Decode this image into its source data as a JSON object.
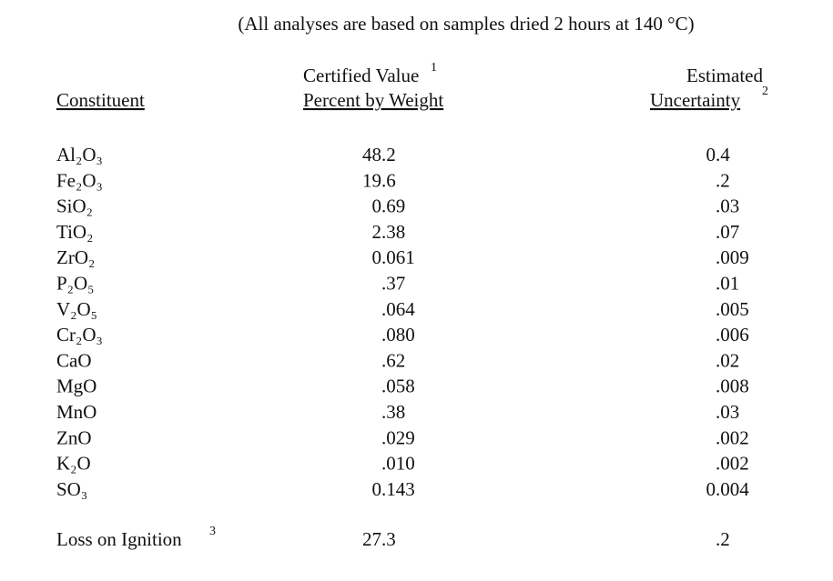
{
  "title": "(All analyses are based on samples dried 2 hours at 140 °C)",
  "header": {
    "constituent": "Constituent",
    "certified_line1": "Certified Value",
    "certified_note": "1",
    "certified_line2": "Percent by Weight",
    "uncertainty_line1": "Estimated",
    "uncertainty_line2": "Uncertainty",
    "uncertainty_note": "2"
  },
  "table": {
    "rows": [
      [
        "Al₂O₃",
        "48.2",
        "0.4"
      ],
      [
        "Fe₂O₃",
        "19.6",
        ".2"
      ],
      [
        "SiO₂",
        "0.69",
        ".03"
      ],
      [
        "TiO₂",
        "2.38",
        ".07"
      ],
      [
        "ZrO₂",
        "0.061",
        ".009"
      ],
      [
        "P₂O₅",
        ".37",
        ".01"
      ],
      [
        "V₂O₅",
        ".064",
        ".005"
      ],
      [
        "Cr₂O₃",
        ".080",
        ".006"
      ],
      [
        "CaO",
        ".62",
        ".02"
      ],
      [
        "MgO",
        ".058",
        ".008"
      ],
      [
        "MnO",
        ".38",
        ".03"
      ],
      [
        "ZnO",
        ".029",
        ".002"
      ],
      [
        "K₂O",
        ".010",
        ".002"
      ],
      [
        "SO₃",
        "0.143",
        "0.004"
      ]
    ]
  },
  "loss": {
    "label": "Loss on Ignition",
    "note": "3",
    "value": "27.3",
    "uncertainty": ".2"
  }
}
